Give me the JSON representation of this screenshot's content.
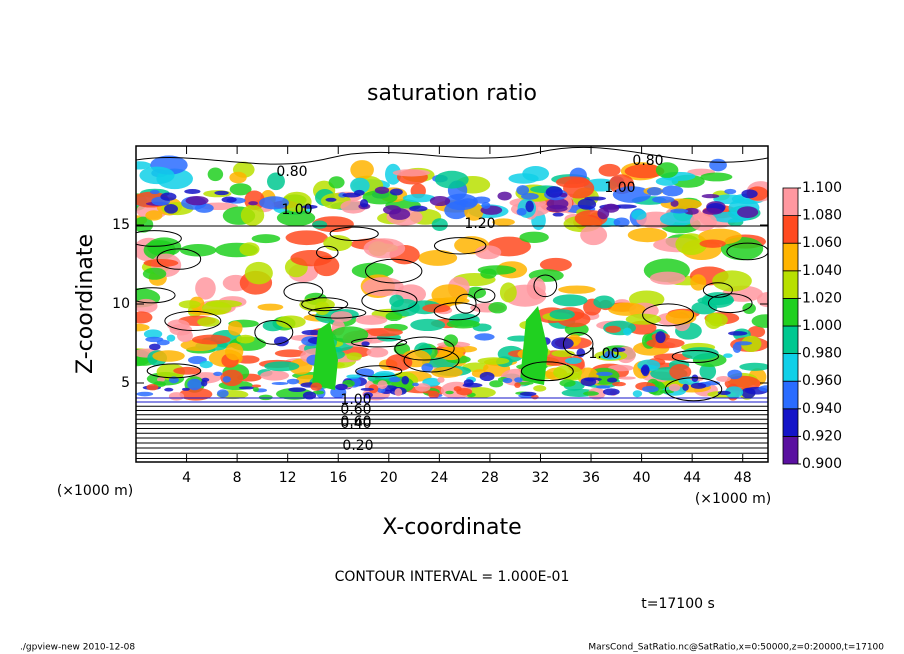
{
  "chart_data": {
    "type": "contour",
    "title": "saturation ratio",
    "x_label": "X-coordinate",
    "y_label": "Z-coordinate",
    "x_unit_left": "(×1000 m)",
    "x_unit_right": "(×1000 m)",
    "xlim": [
      0,
      50
    ],
    "ylim": [
      0,
      20
    ],
    "xticks": [
      4,
      8,
      12,
      16,
      20,
      24,
      28,
      32,
      36,
      40,
      44,
      48
    ],
    "yticks": [
      5,
      10,
      15
    ],
    "colorbar": {
      "ticks": [
        {
          "value": 0.9,
          "label": "0.900"
        },
        {
          "value": 0.92,
          "label": "0.920"
        },
        {
          "value": 0.94,
          "label": "0.940"
        },
        {
          "value": 0.96,
          "label": "0.960"
        },
        {
          "value": 0.98,
          "label": "0.980"
        },
        {
          "value": 1.0,
          "label": "1.000"
        },
        {
          "value": 1.02,
          "label": "1.020"
        },
        {
          "value": 1.04,
          "label": "1.040"
        },
        {
          "value": 1.06,
          "label": "1.060"
        },
        {
          "value": 1.08,
          "label": "1.080"
        },
        {
          "value": 1.1,
          "label": "1.100"
        }
      ],
      "colors": [
        "#5a10a0",
        "#1414c8",
        "#2a6cff",
        "#10d0e8",
        "#00c890",
        "#20d020",
        "#b8e000",
        "#ffb400",
        "#ff4a20",
        "#ff98a0"
      ]
    },
    "contour_labels": [
      "0.80",
      "0.80",
      "1.00",
      "1.00",
      "1.20",
      "1.00",
      "1.00",
      "0.60",
      "0.60",
      "0.40",
      "0.20"
    ],
    "contour_interval": "CONTOUR INTERVAL = 1.000E-01",
    "time_label": "t=17100 s",
    "footer_left": "./gpview-new  2010-12-08",
    "footer_right": "MarsCond_SatRatio.nc@SatRatio,x=0:50000,z=0:20000,t=17100"
  }
}
